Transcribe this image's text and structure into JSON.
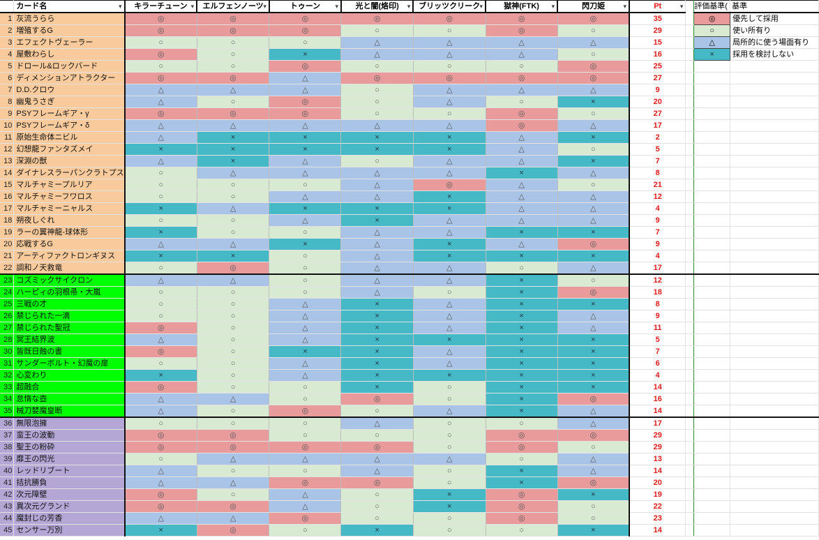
{
  "sheet": {
    "header": {
      "card_name": "カード名",
      "decks": [
        "キラーチューン",
        "エルフェンノーツ",
        "トゥーン",
        "光と闇(烙印)",
        "ブリッツクリーク",
        "獄神(FTK)",
        "閃刀姫"
      ],
      "pt": "Pt",
      "criteria": "評価基準(",
      "criteria2": "基準"
    },
    "legend": [
      {
        "symbol": "◎",
        "label": "優先して採用",
        "key": "best"
      },
      {
        "symbol": "○",
        "label": "使い所有り",
        "key": "good"
      },
      {
        "symbol": "△",
        "label": "局所的に使う場面有り",
        "key": "sit"
      },
      {
        "symbol": "×",
        "label": "採用を検討しない",
        "key": "no"
      }
    ],
    "colors": {
      "best": "#e99b9b",
      "good": "#d9ead3",
      "situational": "#a9c4e6",
      "not_used": "#45b9c6",
      "section_orange": "#f9cb9c",
      "section_green": "#00ff00",
      "section_purple": "#b4a7d6",
      "pt_text": "#e01b1b"
    },
    "rows": [
      {
        "n": "1",
        "name": "灰流うらら",
        "sec": "o",
        "r": [
          "◎",
          "◎",
          "◎",
          "◎",
          "◎",
          "◎",
          "◎"
        ],
        "pt": "35"
      },
      {
        "n": "2",
        "name": "増殖するG",
        "sec": "o",
        "r": [
          "◎",
          "◎",
          "◎",
          "○",
          "○",
          "◎",
          "○"
        ],
        "pt": "29"
      },
      {
        "n": "3",
        "name": "エフェクトヴェーラー",
        "sec": "o",
        "r": [
          "○",
          "○",
          "○",
          "△",
          "△",
          "△",
          "△"
        ],
        "pt": "15"
      },
      {
        "n": "4",
        "name": "屋敷わらし",
        "sec": "o",
        "r": [
          "◎",
          "○",
          "×",
          "△",
          "△",
          "△",
          "○"
        ],
        "pt": "16"
      },
      {
        "n": "5",
        "name": "ドロール&ロックバード",
        "sec": "o",
        "r": [
          "○",
          "○",
          "◎",
          "○",
          "○",
          "○",
          "◎"
        ],
        "pt": "25"
      },
      {
        "n": "6",
        "name": "ディメンションアトラクター",
        "sec": "o",
        "r": [
          "◎",
          "◎",
          "△",
          "◎",
          "◎",
          "◎",
          "◎"
        ],
        "pt": "27"
      },
      {
        "n": "7",
        "name": "D.D.クロウ",
        "sec": "o",
        "r": [
          "△",
          "△",
          "△",
          "○",
          "△",
          "△",
          "△"
        ],
        "pt": "9"
      },
      {
        "n": "8",
        "name": "幽鬼うさぎ",
        "sec": "o",
        "r": [
          "△",
          "○",
          "◎",
          "○",
          "△",
          "○",
          "×"
        ],
        "pt": "20"
      },
      {
        "n": "9",
        "name": "PSYフレームギア・γ",
        "sec": "o",
        "r": [
          "◎",
          "◎",
          "◎",
          "○",
          "○",
          "◎",
          "○"
        ],
        "pt": "27"
      },
      {
        "n": "10",
        "name": "PSYフレームギア・δ",
        "sec": "o",
        "r": [
          "△",
          "△",
          "△",
          "△",
          "△",
          "◎",
          "△"
        ],
        "pt": "17"
      },
      {
        "n": "11",
        "name": "原始生命体ニビル",
        "sec": "o",
        "r": [
          "△",
          "×",
          "×",
          "×",
          "×",
          "△",
          "×"
        ],
        "pt": "2"
      },
      {
        "n": "12",
        "name": "幻想龍ファンタズメイ",
        "sec": "o",
        "r": [
          "×",
          "×",
          "×",
          "×",
          "×",
          "△",
          "○"
        ],
        "pt": "5"
      },
      {
        "n": "13",
        "name": "深淵の獣",
        "sec": "o",
        "r": [
          "△",
          "×",
          "△",
          "○",
          "△",
          "△",
          "×"
        ],
        "pt": "7"
      },
      {
        "n": "14",
        "name": "ダイナレスラーパンクラトプス",
        "sec": "o",
        "r": [
          "○",
          "△",
          "△",
          "△",
          "△",
          "×",
          "△"
        ],
        "pt": "8"
      },
      {
        "n": "15",
        "name": "マルチャミープルリア",
        "sec": "o",
        "r": [
          "○",
          "○",
          "○",
          "△",
          "◎",
          "△",
          "○"
        ],
        "pt": "21"
      },
      {
        "n": "16",
        "name": "マルチャミーフワロス",
        "sec": "o",
        "r": [
          "○",
          "○",
          "△",
          "△",
          "×",
          "△",
          "△"
        ],
        "pt": "12"
      },
      {
        "n": "17",
        "name": "マルチャミーニャルス",
        "sec": "o",
        "r": [
          "×",
          "△",
          "×",
          "×",
          "×",
          "△",
          "△"
        ],
        "pt": "4"
      },
      {
        "n": "18",
        "name": "朔夜しぐれ",
        "sec": "o",
        "r": [
          "○",
          "○",
          "△",
          "×",
          "△",
          "△",
          "△"
        ],
        "pt": "9"
      },
      {
        "n": "19",
        "name": "ラーの翼神龍-球体形",
        "sec": "o",
        "r": [
          "×",
          "○",
          "○",
          "△",
          "△",
          "×",
          "×"
        ],
        "pt": "7"
      },
      {
        "n": "20",
        "name": "応戦するG",
        "sec": "o",
        "r": [
          "△",
          "△",
          "×",
          "△",
          "×",
          "△",
          "◎"
        ],
        "pt": "9"
      },
      {
        "n": "21",
        "name": "アーティファクトロンギヌス",
        "sec": "o",
        "r": [
          "×",
          "×",
          "○",
          "△",
          "×",
          "×",
          "×"
        ],
        "pt": "4"
      },
      {
        "n": "22",
        "name": "調和ノ天救竜",
        "sec": "o",
        "r": [
          "○",
          "◎",
          "○",
          "△",
          "△",
          "○",
          "△"
        ],
        "pt": "17"
      },
      {
        "n": "23",
        "name": "コズミックサイクロン",
        "sec": "g",
        "r": [
          "△",
          "△",
          "○",
          "△",
          "△",
          "×",
          "○"
        ],
        "pt": "12"
      },
      {
        "n": "24",
        "name": "ハーピィの羽根帚・大嵐",
        "sec": "g",
        "r": [
          "○",
          "○",
          "○",
          "△",
          "○",
          "×",
          "◎"
        ],
        "pt": "18"
      },
      {
        "n": "25",
        "name": "三戦の才",
        "sec": "g",
        "r": [
          "○",
          "○",
          "△",
          "×",
          "△",
          "×",
          "×"
        ],
        "pt": "8"
      },
      {
        "n": "26",
        "name": "禁じられた一滴",
        "sec": "g",
        "r": [
          "○",
          "○",
          "△",
          "×",
          "△",
          "×",
          "△"
        ],
        "pt": "9"
      },
      {
        "n": "27",
        "name": "禁じられた聖冠",
        "sec": "g",
        "r": [
          "◎",
          "○",
          "△",
          "×",
          "△",
          "×",
          "△"
        ],
        "pt": "11"
      },
      {
        "n": "28",
        "name": "冥王結界波",
        "sec": "g",
        "r": [
          "△",
          "○",
          "△",
          "×",
          "×",
          "×",
          "×"
        ],
        "pt": "5"
      },
      {
        "n": "30",
        "name": "皆既日蝕の書",
        "sec": "g",
        "r": [
          "◎",
          "○",
          "×",
          "×",
          "△",
          "×",
          "×"
        ],
        "pt": "7"
      },
      {
        "n": "31",
        "name": "サンダーボルト・幻魔の扉",
        "sec": "g",
        "r": [
          "○",
          "○",
          "△",
          "×",
          "△",
          "×",
          "×"
        ],
        "pt": "6"
      },
      {
        "n": "32",
        "name": "心変わり",
        "sec": "g",
        "r": [
          "×",
          "○",
          "△",
          "×",
          "×",
          "×",
          "×"
        ],
        "pt": "4"
      },
      {
        "n": "33",
        "name": "超融合",
        "sec": "g",
        "r": [
          "◎",
          "○",
          "○",
          "×",
          "○",
          "×",
          "×"
        ],
        "pt": "14"
      },
      {
        "n": "34",
        "name": "怠惰な壺",
        "sec": "g",
        "r": [
          "△",
          "△",
          "○",
          "◎",
          "○",
          "×",
          "◎"
        ],
        "pt": "16"
      },
      {
        "n": "35",
        "name": "械刀婪魔皇断",
        "sec": "g",
        "r": [
          "△",
          "○",
          "◎",
          "○",
          "△",
          "×",
          "△"
        ],
        "pt": "14"
      },
      {
        "n": "36",
        "name": "無限泡擁",
        "sec": "p",
        "r": [
          "○",
          "○",
          "○",
          "△",
          "○",
          "○",
          "△"
        ],
        "pt": "17"
      },
      {
        "n": "37",
        "name": "蛮王の波動",
        "sec": "p",
        "r": [
          "◎",
          "◎",
          "○",
          "○",
          "○",
          "◎",
          "◎"
        ],
        "pt": "29"
      },
      {
        "n": "38",
        "name": "聖王の粉砕",
        "sec": "p",
        "r": [
          "◎",
          "◎",
          "◎",
          "◎",
          "○",
          "◎",
          "○"
        ],
        "pt": "29"
      },
      {
        "n": "39",
        "name": "靡王の閃光",
        "sec": "p",
        "r": [
          "○",
          "△",
          "△",
          "△",
          "△",
          "○",
          "△"
        ],
        "pt": "13"
      },
      {
        "n": "40",
        "name": "レッドリブート",
        "sec": "p",
        "r": [
          "△",
          "○",
          "○",
          "△",
          "○",
          "×",
          "△"
        ],
        "pt": "14"
      },
      {
        "n": "41",
        "name": "拮抗勝負",
        "sec": "p",
        "r": [
          "△",
          "△",
          "◎",
          "◎",
          "○",
          "×",
          "◎"
        ],
        "pt": "20"
      },
      {
        "n": "42",
        "name": "次元障壁",
        "sec": "p",
        "r": [
          "◎",
          "○",
          "△",
          "○",
          "×",
          "◎",
          "×"
        ],
        "pt": "19"
      },
      {
        "n": "43",
        "name": "異次元グランド",
        "sec": "p",
        "r": [
          "◎",
          "◎",
          "△",
          "○",
          "×",
          "◎",
          "○"
        ],
        "pt": "22"
      },
      {
        "n": "44",
        "name": "魔封じの芳香",
        "sec": "p",
        "r": [
          "△",
          "△",
          "◎",
          "○",
          "○",
          "◎",
          "○"
        ],
        "pt": "23"
      },
      {
        "n": "45",
        "name": "センサー万別",
        "sec": "p",
        "r": [
          "×",
          "◎",
          "○",
          "×",
          "○",
          "○",
          "×"
        ],
        "pt": "14"
      }
    ]
  }
}
